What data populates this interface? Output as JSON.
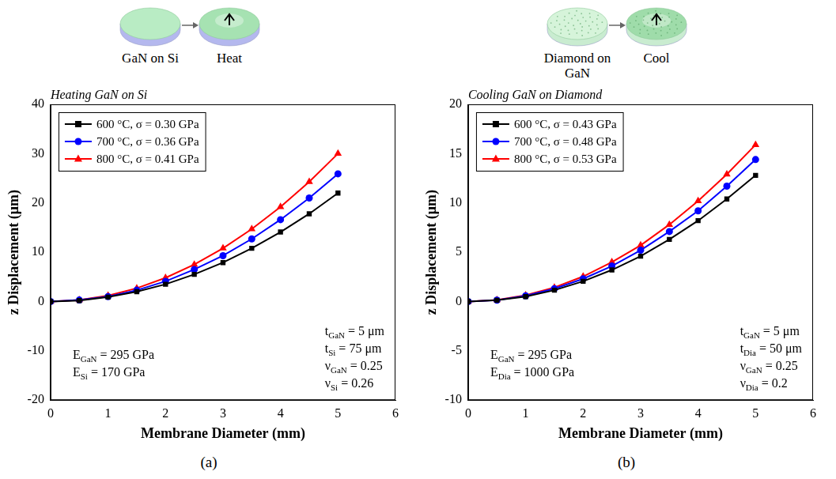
{
  "schematics": [
    {
      "labels": [
        "GaN on Si",
        "Heat"
      ]
    },
    {
      "labels": [
        "Diamond on GaN",
        "Cool"
      ]
    }
  ],
  "chart_data": [
    {
      "type": "line",
      "panel": "(a)",
      "title": "Heating GaN on Si",
      "x_label": "Membrane Diameter (mm)",
      "y_label": "z Displacement (μm)",
      "x": [
        0,
        0.5,
        1,
        1.5,
        2,
        2.5,
        3,
        3.5,
        4,
        4.5,
        5
      ],
      "xlim": [
        0,
        6
      ],
      "xticks": [
        0,
        1,
        2,
        3,
        4,
        5,
        6
      ],
      "ylim": [
        -20,
        40
      ],
      "yticks": [
        -20,
        -10,
        0,
        10,
        20,
        30,
        40
      ],
      "grid": false,
      "legend": "upper left",
      "series": [
        {
          "name": "600 °C, σ = 0.30 GPa",
          "color": "#000000",
          "marker": "square",
          "line_style": "solid",
          "values": [
            0,
            0.2,
            0.9,
            2.0,
            3.5,
            5.5,
            7.9,
            10.8,
            14.1,
            17.8,
            22.0
          ]
        },
        {
          "name": "700 °C, σ = 0.36 GPa",
          "color": "#0000ff",
          "marker": "circle",
          "line_style": "solid",
          "values": [
            0,
            0.3,
            1.0,
            2.3,
            4.1,
            6.5,
            9.3,
            12.7,
            16.6,
            21.0,
            25.9
          ]
        },
        {
          "name": "800 °C, σ = 0.41 GPa",
          "color": "#ff0000",
          "marker": "triangle",
          "line_style": "solid",
          "values": [
            0,
            0.3,
            1.2,
            2.7,
            4.8,
            7.5,
            10.8,
            14.7,
            19.2,
            24.3,
            30.0
          ]
        }
      ],
      "annotations": [
        {
          "lines": [
            {
              "text": "E",
              "sub": "GaN",
              "rest": " = 295 GPa"
            },
            {
              "text": "E",
              "sub": "Si",
              "rest": " = 170 GPa"
            }
          ]
        },
        {
          "lines": [
            {
              "text": "t",
              "sub": "GaN",
              "rest": " = 5 μm"
            },
            {
              "text": "t",
              "sub": "Si",
              "rest": " = 75 μm"
            },
            {
              "text": "ν",
              "sub": "GaN",
              "rest": " = 0.25"
            },
            {
              "text": "ν",
              "sub": "Si",
              "rest": " = 0.26"
            }
          ]
        }
      ]
    },
    {
      "type": "line",
      "panel": "(b)",
      "title": "Cooling GaN on Diamond",
      "x_label": "Membrane Diameter (mm)",
      "y_label": "z Displacement (μm)",
      "x": [
        0,
        0.5,
        1,
        1.5,
        2,
        2.5,
        3,
        3.5,
        4,
        4.5,
        5
      ],
      "xlim": [
        0,
        6
      ],
      "xticks": [
        0,
        1,
        2,
        3,
        4,
        5,
        6
      ],
      "ylim": [
        -10,
        20
      ],
      "yticks": [
        -10,
        -5,
        0,
        5,
        10,
        15,
        20
      ],
      "grid": false,
      "legend": "upper left",
      "series": [
        {
          "name": "600 °C, σ = 0.43 GPa",
          "color": "#000000",
          "marker": "square",
          "line_style": "solid",
          "values": [
            0,
            0.13,
            0.5,
            1.15,
            2.05,
            3.2,
            4.6,
            6.3,
            8.2,
            10.4,
            12.8
          ]
        },
        {
          "name": "700 °C, σ = 0.48 GPa",
          "color": "#0000ff",
          "marker": "circle",
          "line_style": "solid",
          "values": [
            0,
            0.14,
            0.58,
            1.3,
            2.3,
            3.6,
            5.2,
            7.1,
            9.2,
            11.7,
            14.4
          ]
        },
        {
          "name": "800 °C, σ = 0.53 GPa",
          "color": "#ff0000",
          "marker": "triangle",
          "line_style": "solid",
          "values": [
            0,
            0.16,
            0.64,
            1.43,
            2.54,
            4.0,
            5.7,
            7.8,
            10.2,
            12.9,
            15.9
          ]
        }
      ],
      "annotations": [
        {
          "lines": [
            {
              "text": "E",
              "sub": "GaN",
              "rest": " = 295 GPa"
            },
            {
              "text": "E",
              "sub": "Dia",
              "rest": " = 1000 GPa"
            }
          ]
        },
        {
          "lines": [
            {
              "text": "t",
              "sub": "GaN",
              "rest": " = 5 μm"
            },
            {
              "text": "t",
              "sub": "Dia",
              "rest": " = 50 μm"
            },
            {
              "text": "ν",
              "sub": "GaN",
              "rest": " = 0.25"
            },
            {
              "text": "ν",
              "sub": "Dia",
              "rest": " = 0.2"
            }
          ]
        }
      ]
    }
  ]
}
